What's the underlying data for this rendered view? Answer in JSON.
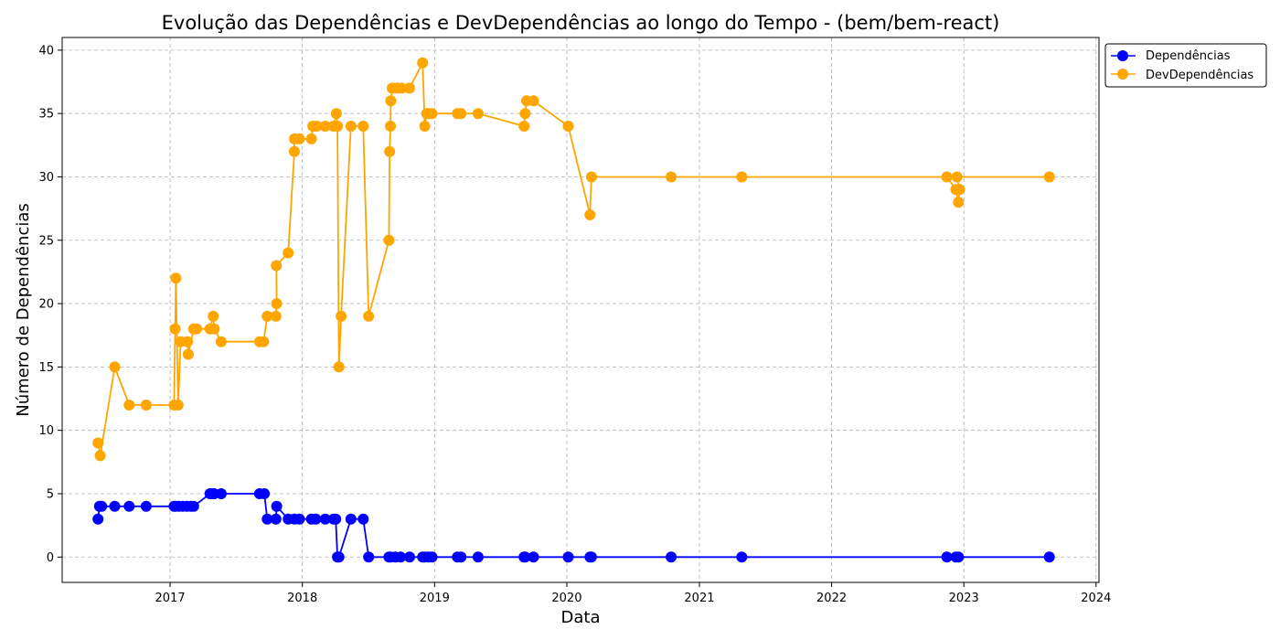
{
  "chart_data": {
    "type": "line",
    "title": "Evolução das Dependências e DevDependências ao longo do Tempo - (bem/bem-react)",
    "xlabel": "Data",
    "ylabel": "Número de Dependências",
    "x_ticks": [
      "2017",
      "2018",
      "2019",
      "2020",
      "2021",
      "2022",
      "2023",
      "2024"
    ],
    "y_ticks": [
      "0",
      "5",
      "10",
      "15",
      "20",
      "25",
      "30",
      "35",
      "40"
    ],
    "xlim": [
      "2016-03-09",
      "2024-01-09"
    ],
    "ylim": [
      -2,
      41
    ],
    "grid": true,
    "legend_position": "top-right",
    "series": [
      {
        "name": "Dependências",
        "color": "#0000ff",
        "points": [
          [
            "2016-06-16",
            3
          ],
          [
            "2016-06-20",
            4
          ],
          [
            "2016-06-26",
            4
          ],
          [
            "2016-08-01",
            4
          ],
          [
            "2016-09-10",
            4
          ],
          [
            "2016-10-27",
            4
          ],
          [
            "2017-01-12",
            4
          ],
          [
            "2017-01-16",
            4
          ],
          [
            "2017-01-25",
            4
          ],
          [
            "2017-02-05",
            4
          ],
          [
            "2017-02-16",
            4
          ],
          [
            "2017-02-27",
            4
          ],
          [
            "2017-03-07",
            4
          ],
          [
            "2017-04-21",
            5
          ],
          [
            "2017-04-27",
            5
          ],
          [
            "2017-05-03",
            5
          ],
          [
            "2017-05-22",
            5
          ],
          [
            "2017-09-05",
            5
          ],
          [
            "2017-09-18",
            5
          ],
          [
            "2017-09-26",
            3
          ],
          [
            "2017-10-20",
            3
          ],
          [
            "2017-10-22",
            4
          ],
          [
            "2017-11-23",
            3
          ],
          [
            "2017-12-10",
            3
          ],
          [
            "2017-12-24",
            3
          ],
          [
            "2018-01-26",
            3
          ],
          [
            "2018-02-07",
            3
          ],
          [
            "2018-03-05",
            3
          ],
          [
            "2018-03-28",
            3
          ],
          [
            "2018-04-03",
            3
          ],
          [
            "2018-04-08",
            0
          ],
          [
            "2018-04-12",
            0
          ],
          [
            "2018-05-15",
            3
          ],
          [
            "2018-06-18",
            3
          ],
          [
            "2018-07-03",
            0
          ],
          [
            "2018-08-28",
            0
          ],
          [
            "2018-09-02",
            0
          ],
          [
            "2018-09-15",
            0
          ],
          [
            "2018-09-29",
            0
          ],
          [
            "2018-10-24",
            0
          ],
          [
            "2018-11-29",
            0
          ],
          [
            "2018-12-05",
            0
          ],
          [
            "2018-12-15",
            0
          ],
          [
            "2018-12-25",
            0
          ],
          [
            "2019-03-05",
            0
          ],
          [
            "2019-03-15",
            0
          ],
          [
            "2019-05-01",
            0
          ],
          [
            "2019-09-05",
            0
          ],
          [
            "2019-09-08",
            0
          ],
          [
            "2019-10-01",
            0
          ],
          [
            "2020-01-05",
            0
          ],
          [
            "2020-03-05",
            0
          ],
          [
            "2020-03-09",
            0
          ],
          [
            "2020-10-15",
            0
          ],
          [
            "2021-04-28",
            0
          ],
          [
            "2022-11-15",
            0
          ],
          [
            "2022-12-10",
            0
          ],
          [
            "2022-12-17",
            0
          ],
          [
            "2023-08-25",
            0
          ]
        ]
      },
      {
        "name": "DevDependências",
        "color": "#ffa500",
        "points": [
          [
            "2016-06-16",
            9
          ],
          [
            "2016-06-22",
            8
          ],
          [
            "2016-08-01",
            15
          ],
          [
            "2016-09-10",
            12
          ],
          [
            "2016-10-27",
            12
          ],
          [
            "2017-01-12",
            12
          ],
          [
            "2017-01-15",
            18
          ],
          [
            "2017-01-17",
            22
          ],
          [
            "2017-01-23",
            12
          ],
          [
            "2017-01-30",
            17
          ],
          [
            "2017-02-18",
            17
          ],
          [
            "2017-02-20",
            16
          ],
          [
            "2017-03-07",
            18
          ],
          [
            "2017-03-15",
            18
          ],
          [
            "2017-04-21",
            18
          ],
          [
            "2017-04-30",
            19
          ],
          [
            "2017-05-03",
            18
          ],
          [
            "2017-05-22",
            17
          ],
          [
            "2017-09-05",
            17
          ],
          [
            "2017-09-16",
            17
          ],
          [
            "2017-09-26",
            19
          ],
          [
            "2017-10-20",
            19
          ],
          [
            "2017-10-22",
            20
          ],
          [
            "2017-10-21",
            23
          ],
          [
            "2017-11-23",
            24
          ],
          [
            "2017-12-10",
            32
          ],
          [
            "2017-12-10",
            33
          ],
          [
            "2017-12-24",
            33
          ],
          [
            "2018-01-26",
            33
          ],
          [
            "2018-01-30",
            34
          ],
          [
            "2018-02-10",
            34
          ],
          [
            "2018-03-05",
            34
          ],
          [
            "2018-03-28",
            34
          ],
          [
            "2018-04-05",
            35
          ],
          [
            "2018-04-08",
            34
          ],
          [
            "2018-04-12",
            15
          ],
          [
            "2018-04-18",
            19
          ],
          [
            "2018-05-15",
            34
          ],
          [
            "2018-06-18",
            34
          ],
          [
            "2018-07-03",
            19
          ],
          [
            "2018-08-28",
            25
          ],
          [
            "2018-08-30",
            32
          ],
          [
            "2018-09-01",
            34
          ],
          [
            "2018-09-02",
            36
          ],
          [
            "2018-09-06",
            37
          ],
          [
            "2018-09-20",
            37
          ],
          [
            "2018-10-02",
            37
          ],
          [
            "2018-10-24",
            37
          ],
          [
            "2018-11-29",
            39
          ],
          [
            "2018-12-05",
            34
          ],
          [
            "2018-12-10",
            35
          ],
          [
            "2018-12-15",
            35
          ],
          [
            "2018-12-25",
            35
          ],
          [
            "2019-03-05",
            35
          ],
          [
            "2019-03-15",
            35
          ],
          [
            "2019-05-01",
            35
          ],
          [
            "2019-09-05",
            34
          ],
          [
            "2019-09-08",
            35
          ],
          [
            "2019-09-12",
            36
          ],
          [
            "2019-10-01",
            36
          ],
          [
            "2020-01-05",
            34
          ],
          [
            "2020-03-05",
            27
          ],
          [
            "2020-03-09",
            30
          ],
          [
            "2020-10-15",
            30
          ],
          [
            "2021-04-28",
            30
          ],
          [
            "2022-11-15",
            30
          ],
          [
            "2022-12-10",
            29
          ],
          [
            "2022-12-17",
            28
          ],
          [
            "2022-12-20",
            29
          ],
          [
            "2022-12-13",
            30
          ],
          [
            "2023-08-25",
            30
          ]
        ]
      }
    ]
  }
}
